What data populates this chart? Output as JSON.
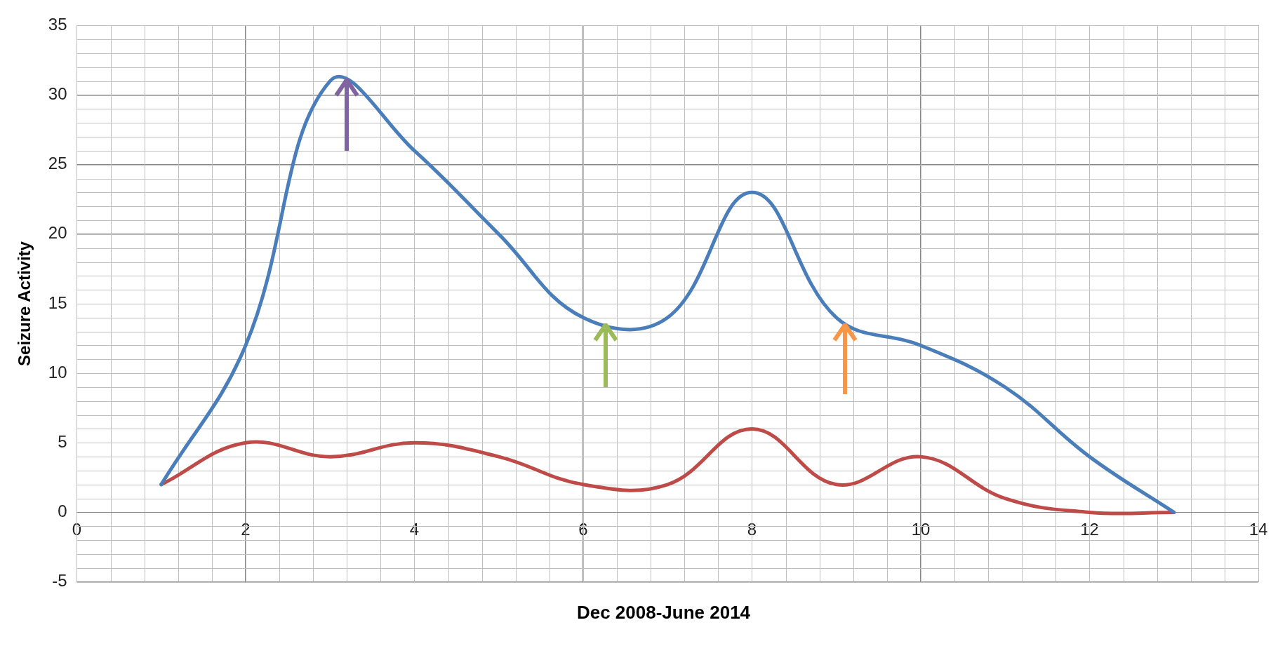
{
  "chart_data": {
    "type": "line",
    "xlabel": "Dec 2008-June 2014",
    "ylabel": "Seizure Activity",
    "x": [
      1,
      2,
      3,
      4,
      5,
      6,
      7,
      8,
      9,
      10,
      11,
      12,
      13
    ],
    "series": [
      {
        "color": "#4a7ebb",
        "values": [
          2,
          12,
          31,
          26,
          20,
          14,
          14,
          23,
          14,
          12,
          9,
          4,
          0
        ]
      },
      {
        "color": "#be4b48",
        "values": [
          2,
          5,
          4,
          5,
          4,
          2,
          2,
          6,
          2,
          4,
          1,
          0,
          0
        ]
      }
    ],
    "xlim": [
      0,
      14
    ],
    "xticks": [
      0,
      2,
      4,
      6,
      8,
      10,
      12,
      14
    ],
    "ylim": [
      -5,
      35
    ],
    "yticks": [
      -5,
      0,
      5,
      10,
      15,
      20,
      25,
      30,
      35
    ],
    "grid": true,
    "legend": false,
    "marker": "none",
    "line_style": "solid"
  }
}
